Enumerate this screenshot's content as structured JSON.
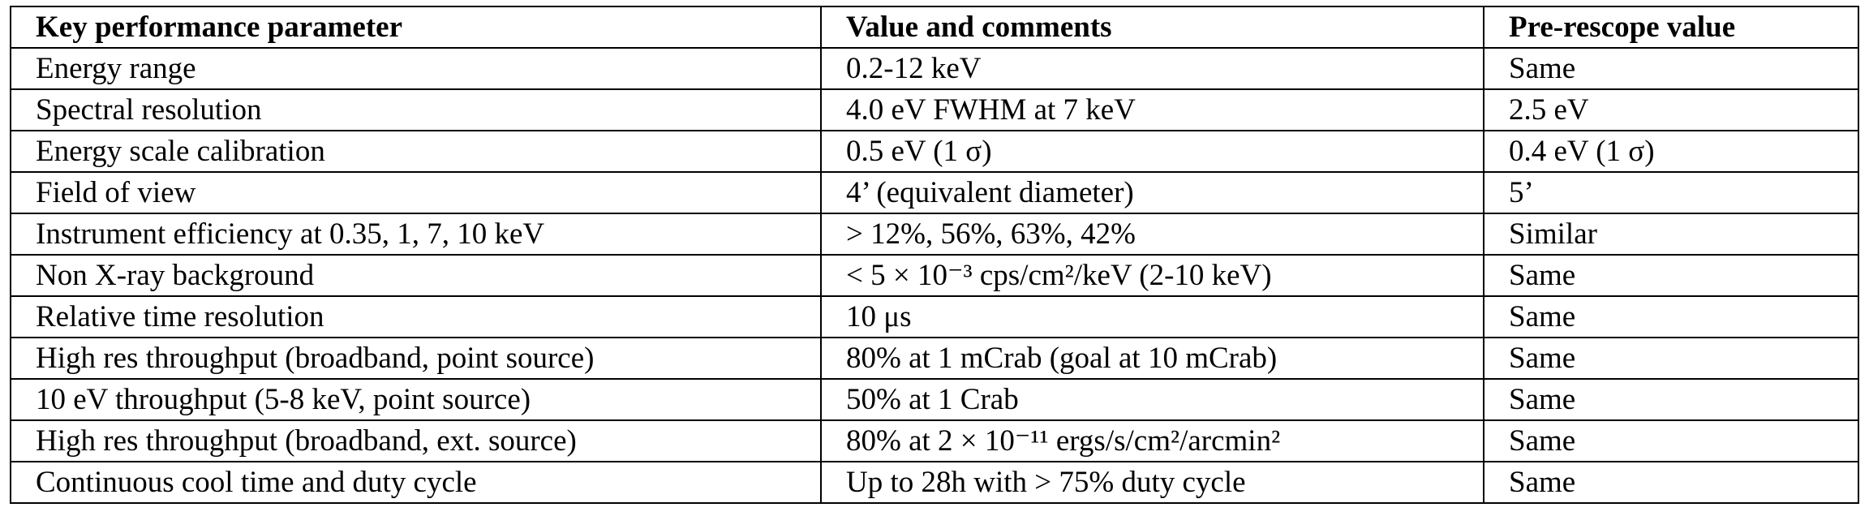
{
  "table": {
    "header": [
      "Key performance parameter",
      "Value and comments",
      "Pre-rescope value"
    ],
    "rows": [
      [
        "Energy range",
        "0.2-12 keV",
        "Same"
      ],
      [
        "Spectral resolution",
        "4.0 eV FWHM at 7 keV",
        "2.5 eV"
      ],
      [
        "Energy scale calibration",
        "0.5 eV (1 σ)",
        "0.4 eV (1 σ)"
      ],
      [
        "Field of view",
        "4’ (equivalent diameter)",
        "5’"
      ],
      [
        "Instrument efficiency at 0.35, 1, 7, 10 keV",
        "> 12%, 56%, 63%, 42%",
        "Similar"
      ],
      [
        "Non X-ray background",
        "< 5 × 10⁻³ cps/cm²/keV (2-10 keV)",
        "Same"
      ],
      [
        "Relative time resolution",
        "10 μs",
        "Same"
      ],
      [
        "High res throughput (broadband, point source)",
        "80% at 1 mCrab (goal at 10 mCrab)",
        "Same"
      ],
      [
        "10 eV throughput (5-8 keV, point source)",
        "50% at 1 Crab",
        "Same"
      ],
      [
        "High res throughput (broadband, ext. source)",
        "80% at 2 × 10⁻¹¹ ergs/s/cm²/arcmin²",
        "Same"
      ],
      [
        "Continuous cool time and duty cycle",
        "Up to 28h with > 75% duty cycle",
        "Same"
      ]
    ]
  }
}
